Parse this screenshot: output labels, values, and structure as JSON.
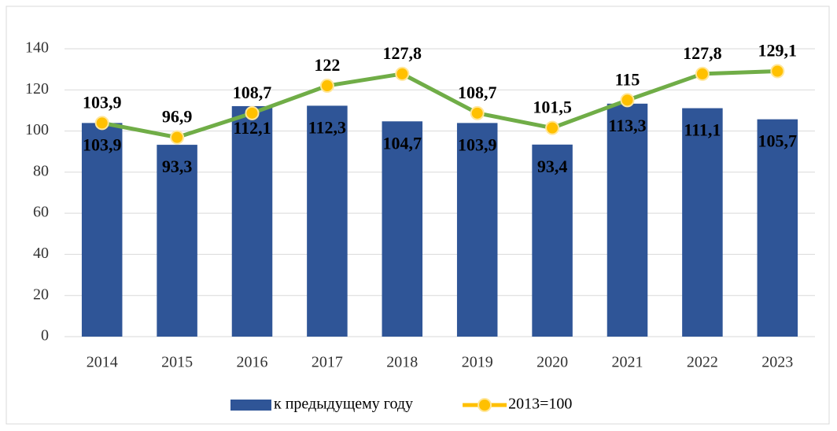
{
  "chart_data": {
    "type": "combo",
    "categories": [
      "2014",
      "2015",
      "2016",
      "2017",
      "2018",
      "2019",
      "2020",
      "2021",
      "2022",
      "2023"
    ],
    "series": [
      {
        "name": "к предыдущему году",
        "type": "bar",
        "color": "#2f5597",
        "values": [
          103.9,
          93.3,
          112.1,
          112.3,
          104.7,
          103.9,
          93.4,
          113.3,
          111.1,
          105.7
        ],
        "value_labels": [
          "103,9",
          "93,3",
          "112,1",
          "112,3",
          "104,7",
          "103,9",
          "93,4",
          "113,3",
          "111,1",
          "105,7"
        ]
      },
      {
        "name": "2013=100",
        "type": "line",
        "color": "#70ad47",
        "marker_color": "#ffc000",
        "values": [
          103.9,
          96.9,
          108.7,
          122,
          127.8,
          108.7,
          101.5,
          115,
          127.8,
          129.1
        ],
        "value_labels": [
          "103,9",
          "96,9",
          "108,7",
          "122",
          "127,8",
          "108,7",
          "101,5",
          "115",
          "127,8",
          "129,1"
        ]
      }
    ],
    "ylim": [
      0,
      140
    ],
    "yticks": [
      0,
      20,
      40,
      60,
      80,
      100,
      120,
      140
    ],
    "grid": true,
    "legend": "bottom"
  }
}
